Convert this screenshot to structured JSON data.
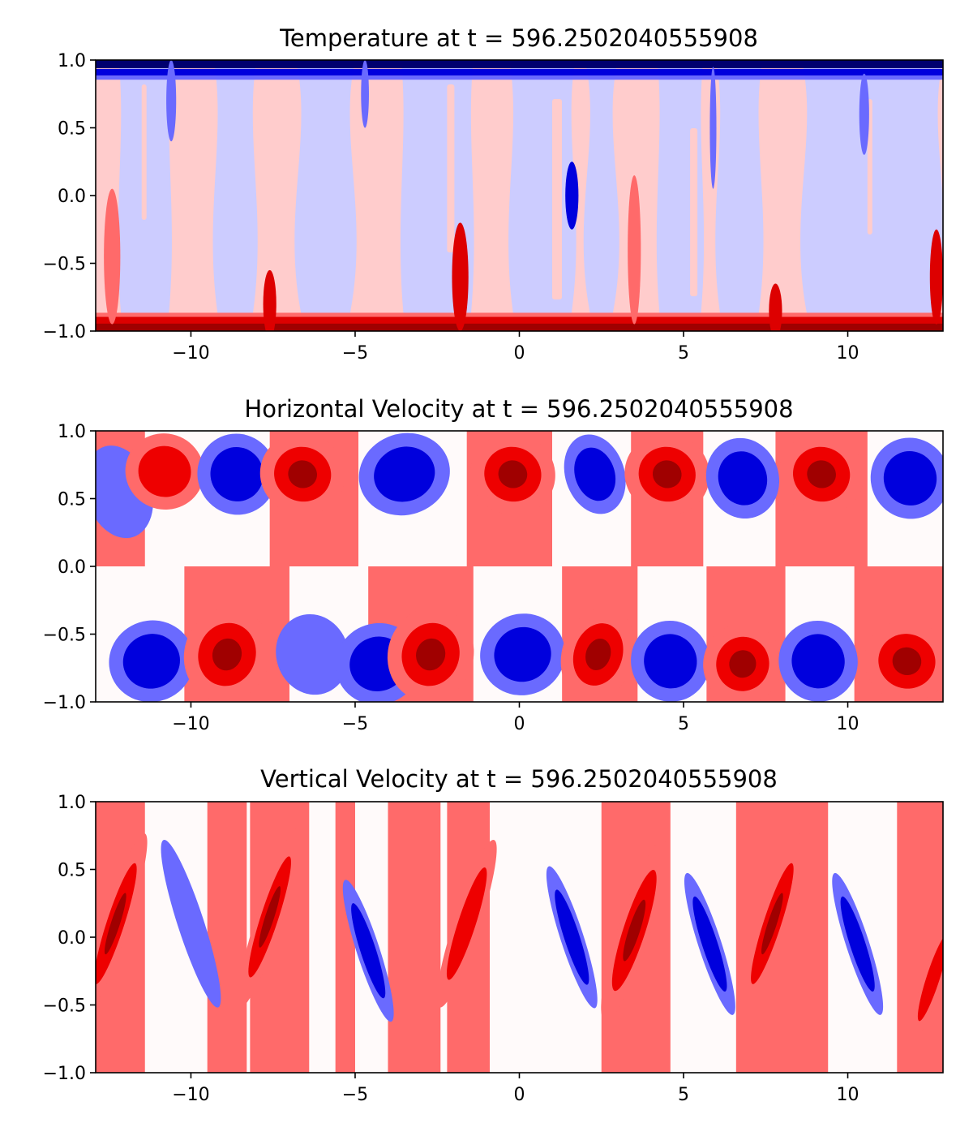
{
  "chart_data": [
    {
      "type": "filled-contour",
      "title": "Temperature at t = 596.2502040555908",
      "field": "temperature",
      "xlim": [
        -12.9,
        12.9
      ],
      "ylim": [
        -1.0,
        1.0
      ],
      "xticks": [
        -10,
        -5,
        0,
        5,
        10
      ],
      "xtick_labels": [
        "−10",
        "−5",
        "0",
        "5",
        "10"
      ],
      "yticks": [
        -1.0,
        -0.5,
        0.0,
        0.5,
        1.0
      ],
      "ytick_labels": [
        "−1.0",
        "−0.5",
        "0.0",
        "0.5",
        "1.0"
      ],
      "colormap": "seismic",
      "levels": [
        "#00006f",
        "#0000dd",
        "#6a6aff",
        "#ccccff",
        "#ffcccc",
        "#ff6a6a",
        "#dd0000",
        "#a00000"
      ],
      "grid": false,
      "features": [
        {
          "kind": "band",
          "y": 0.97,
          "h": 0.06,
          "level": 0
        },
        {
          "kind": "band",
          "y": 0.91,
          "h": 0.05,
          "level": 1
        },
        {
          "kind": "band",
          "y": 0.87,
          "h": 0.03,
          "level": 2
        },
        {
          "kind": "band",
          "y": -0.97,
          "h": 0.06,
          "level": 7
        },
        {
          "kind": "band",
          "y": -0.92,
          "h": 0.05,
          "level": 6
        },
        {
          "kind": "band",
          "y": -0.88,
          "h": 0.03,
          "level": 5
        },
        {
          "kind": "plume",
          "x": -12.4,
          "y": -0.45,
          "rx": 0.25,
          "ry": 0.5,
          "level": 5
        },
        {
          "kind": "plume",
          "x": -7.6,
          "y": -0.8,
          "rx": 0.2,
          "ry": 0.25,
          "level": 6
        },
        {
          "kind": "plume",
          "x": -1.8,
          "y": -0.6,
          "rx": 0.25,
          "ry": 0.4,
          "level": 6
        },
        {
          "kind": "plume",
          "x": 3.5,
          "y": -0.4,
          "rx": 0.2,
          "ry": 0.55,
          "level": 5
        },
        {
          "kind": "plume",
          "x": 7.8,
          "y": -0.85,
          "rx": 0.2,
          "ry": 0.2,
          "level": 6
        },
        {
          "kind": "plume",
          "x": 12.7,
          "y": -0.6,
          "rx": 0.2,
          "ry": 0.35,
          "level": 6
        },
        {
          "kind": "plume",
          "x": -10.6,
          "y": 0.7,
          "rx": 0.15,
          "ry": 0.3,
          "level": 2
        },
        {
          "kind": "plume",
          "x": -4.7,
          "y": 0.75,
          "rx": 0.12,
          "ry": 0.25,
          "level": 2
        },
        {
          "kind": "plume",
          "x": 1.6,
          "y": 0.0,
          "rx": 0.2,
          "ry": 0.25,
          "level": 1
        },
        {
          "kind": "plume",
          "x": 5.9,
          "y": 0.5,
          "rx": 0.1,
          "ry": 0.45,
          "level": 2
        },
        {
          "kind": "plume",
          "x": 10.5,
          "y": 0.6,
          "rx": 0.15,
          "ry": 0.3,
          "level": 2
        }
      ]
    },
    {
      "type": "filled-contour",
      "title": "Horizontal Velocity at t = 596.2502040555908",
      "field": "u",
      "xlim": [
        -12.9,
        12.9
      ],
      "ylim": [
        -1.0,
        1.0
      ],
      "xticks": [
        -10,
        -5,
        0,
        5,
        10
      ],
      "xtick_labels": [
        "−10",
        "−5",
        "0",
        "5",
        "10"
      ],
      "yticks": [
        -1.0,
        -0.5,
        0.0,
        0.5,
        1.0
      ],
      "ytick_labels": [
        "−1.0",
        "−0.5",
        "0.0",
        "0.5",
        "1.0"
      ],
      "colormap": "seismic",
      "levels": [
        "#0000dd",
        "#6a6aff",
        "#fffafa",
        "#ff6a6a",
        "#ee0000",
        "#a00000"
      ],
      "grid": false,
      "cells": [
        {
          "x": -12.2,
          "y": 0.55,
          "rx": 1.0,
          "ry": 0.35,
          "sign": -1,
          "strength": 0.6
        },
        {
          "x": -10.8,
          "y": 0.7,
          "rx": 1.2,
          "ry": 0.28,
          "sign": 1,
          "strength": 0.9
        },
        {
          "x": -8.6,
          "y": 0.68,
          "rx": 1.2,
          "ry": 0.3,
          "sign": -1,
          "strength": 0.8
        },
        {
          "x": -6.6,
          "y": 0.68,
          "rx": 1.3,
          "ry": 0.3,
          "sign": 1,
          "strength": 1.0
        },
        {
          "x": -3.5,
          "y": 0.68,
          "rx": 1.4,
          "ry": 0.3,
          "sign": -1,
          "strength": 0.9
        },
        {
          "x": -0.2,
          "y": 0.68,
          "rx": 1.3,
          "ry": 0.3,
          "sign": 1,
          "strength": 1.0
        },
        {
          "x": 2.3,
          "y": 0.68,
          "rx": 0.9,
          "ry": 0.3,
          "sign": -1,
          "strength": 0.9
        },
        {
          "x": 4.5,
          "y": 0.68,
          "rx": 1.3,
          "ry": 0.3,
          "sign": 1,
          "strength": 1.0
        },
        {
          "x": 6.8,
          "y": 0.65,
          "rx": 1.1,
          "ry": 0.3,
          "sign": -1,
          "strength": 0.9
        },
        {
          "x": 9.2,
          "y": 0.68,
          "rx": 1.3,
          "ry": 0.3,
          "sign": 1,
          "strength": 1.0
        },
        {
          "x": 11.9,
          "y": 0.65,
          "rx": 1.2,
          "ry": 0.3,
          "sign": -1,
          "strength": 0.9
        },
        {
          "x": -11.2,
          "y": -0.7,
          "rx": 1.3,
          "ry": 0.3,
          "sign": -1,
          "strength": 0.9
        },
        {
          "x": -8.9,
          "y": -0.65,
          "rx": 1.3,
          "ry": 0.35,
          "sign": 1,
          "strength": 1.0
        },
        {
          "x": -6.3,
          "y": -0.65,
          "rx": 1.1,
          "ry": 0.3,
          "sign": -1,
          "strength": 0.6
        },
        {
          "x": -4.3,
          "y": -0.72,
          "rx": 1.3,
          "ry": 0.3,
          "sign": -1,
          "strength": 0.9
        },
        {
          "x": -2.7,
          "y": -0.65,
          "rx": 1.3,
          "ry": 0.35,
          "sign": 1,
          "strength": 1.0
        },
        {
          "x": 0.1,
          "y": -0.65,
          "rx": 1.3,
          "ry": 0.3,
          "sign": -1,
          "strength": 0.9
        },
        {
          "x": 2.4,
          "y": -0.65,
          "rx": 1.1,
          "ry": 0.35,
          "sign": 1,
          "strength": 1.0
        },
        {
          "x": 4.6,
          "y": -0.7,
          "rx": 1.2,
          "ry": 0.3,
          "sign": -1,
          "strength": 0.9
        },
        {
          "x": 6.8,
          "y": -0.72,
          "rx": 1.2,
          "ry": 0.3,
          "sign": 1,
          "strength": 1.0
        },
        {
          "x": 9.1,
          "y": -0.7,
          "rx": 1.2,
          "ry": 0.3,
          "sign": -1,
          "strength": 0.8
        },
        {
          "x": 11.8,
          "y": -0.7,
          "rx": 1.3,
          "ry": 0.3,
          "sign": 1,
          "strength": 1.0
        }
      ]
    },
    {
      "type": "filled-contour",
      "title": "Vertical Velocity at t = 596.2502040555908",
      "field": "w",
      "xlim": [
        -12.9,
        12.9
      ],
      "ylim": [
        -1.0,
        1.0
      ],
      "xticks": [
        -10,
        -5,
        0,
        5,
        10
      ],
      "xtick_labels": [
        "−10",
        "−5",
        "0",
        "5",
        "10"
      ],
      "yticks": [
        -1.0,
        -0.5,
        0.0,
        0.5,
        1.0
      ],
      "ytick_labels": [
        "−1.0",
        "−0.5",
        "0.0",
        "0.5",
        "1.0"
      ],
      "colormap": "seismic",
      "levels": [
        "#0000dd",
        "#6a6aff",
        "#fffafa",
        "#ff6a6a",
        "#ee0000",
        "#a00000"
      ],
      "grid": false,
      "cells": [
        {
          "x": -12.3,
          "y": 0.1,
          "rx": 0.4,
          "ry": 0.7,
          "sign": 1,
          "strength": 1.0
        },
        {
          "x": -10.0,
          "y": 0.1,
          "rx": 0.4,
          "ry": 0.65,
          "sign": -1,
          "strength": 0.7
        },
        {
          "x": -7.6,
          "y": 0.15,
          "rx": 0.4,
          "ry": 0.7,
          "sign": 1,
          "strength": 1.0
        },
        {
          "x": -4.6,
          "y": -0.1,
          "rx": 0.35,
          "ry": 0.55,
          "sign": -1,
          "strength": 1.0
        },
        {
          "x": -1.6,
          "y": 0.1,
          "rx": 0.4,
          "ry": 0.65,
          "sign": 1,
          "strength": 0.9
        },
        {
          "x": 1.6,
          "y": 0.0,
          "rx": 0.35,
          "ry": 0.55,
          "sign": -1,
          "strength": 1.0
        },
        {
          "x": 3.5,
          "y": 0.05,
          "rx": 0.5,
          "ry": 0.7,
          "sign": 1,
          "strength": 1.0
        },
        {
          "x": 5.8,
          "y": -0.05,
          "rx": 0.35,
          "ry": 0.55,
          "sign": -1,
          "strength": 1.0
        },
        {
          "x": 7.7,
          "y": 0.1,
          "rx": 0.4,
          "ry": 0.7,
          "sign": 1,
          "strength": 1.0
        },
        {
          "x": 10.3,
          "y": -0.05,
          "rx": 0.35,
          "ry": 0.55,
          "sign": -1,
          "strength": 1.0
        },
        {
          "x": 12.6,
          "y": -0.3,
          "rx": 0.3,
          "ry": 0.5,
          "sign": 1,
          "strength": 0.9
        }
      ]
    }
  ]
}
